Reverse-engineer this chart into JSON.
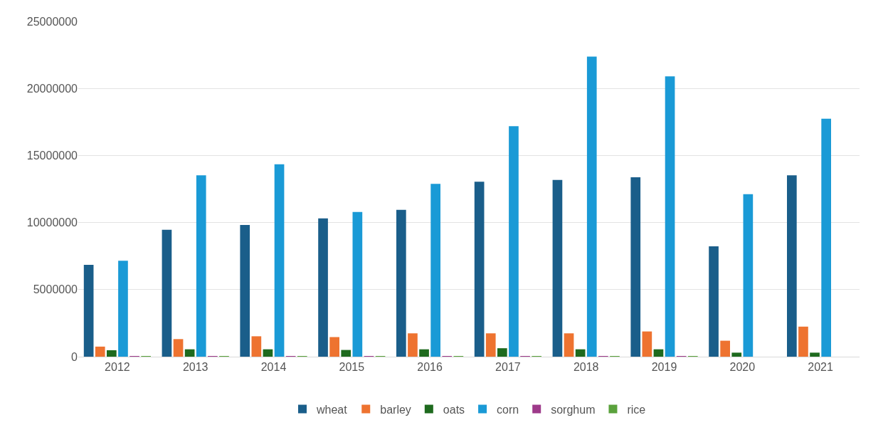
{
  "chart_data": {
    "type": "bar",
    "categories": [
      "2012",
      "2013",
      "2014",
      "2015",
      "2016",
      "2017",
      "2018",
      "2019",
      "2020",
      "2021"
    ],
    "series": [
      {
        "name": "wheat",
        "color": "#1a5e8a",
        "values": [
          6850000,
          9460000,
          9820000,
          10310000,
          10950000,
          13040000,
          13180000,
          13380000,
          8230000,
          13520000
        ]
      },
      {
        "name": "barley",
        "color": "#ee7330",
        "values": [
          750000,
          1310000,
          1520000,
          1460000,
          1740000,
          1740000,
          1740000,
          1880000,
          1190000,
          2240000
        ]
      },
      {
        "name": "oats",
        "color": "#1e6a1e",
        "values": [
          480000,
          550000,
          550000,
          500000,
          550000,
          630000,
          550000,
          550000,
          300000,
          300000
        ]
      },
      {
        "name": "corn",
        "color": "#1a9ad6",
        "values": [
          7150000,
          13520000,
          14350000,
          10790000,
          12890000,
          17180000,
          22370000,
          20900000,
          12110000,
          17740000
        ]
      },
      {
        "name": "sorghum",
        "color": "#9e3a8a",
        "values": [
          50000,
          50000,
          50000,
          50000,
          50000,
          50000,
          50000,
          50000,
          0,
          0
        ]
      },
      {
        "name": "rice",
        "color": "#5aa23c",
        "values": [
          50000,
          50000,
          50000,
          50000,
          50000,
          50000,
          50000,
          50000,
          0,
          0
        ]
      }
    ],
    "ylim": [
      0,
      25000000
    ],
    "yticks": [
      0,
      5000000,
      10000000,
      15000000,
      20000000,
      25000000
    ],
    "grid": "y",
    "legend": "bottom"
  }
}
